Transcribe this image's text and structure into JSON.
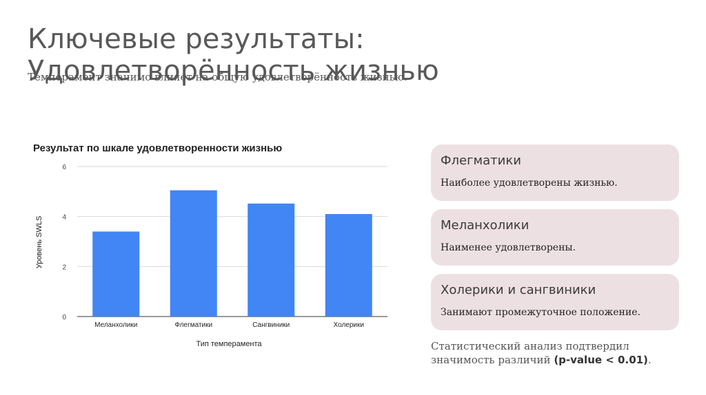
{
  "slide": {
    "title": "Ключевые результаты: Удовлетворённость жизнью",
    "subtitle": "Темперамент значимо влияет на общую удовлетворённость жизнью."
  },
  "chart_data": {
    "type": "bar",
    "title": "Результат по шкале удовлетворенности жизнью",
    "xlabel": "Тип темперамента",
    "ylabel": "Уровень SWLS",
    "categories": [
      "Меланхолики",
      "Флегматики",
      "Сангвиники",
      "Холерики"
    ],
    "values": [
      3.4,
      5.05,
      4.52,
      4.1
    ],
    "ylim": [
      0,
      6
    ],
    "yticks": [
      "0",
      "2",
      "4",
      "6"
    ],
    "grid": true,
    "legend": "none",
    "bar_color": "#4285f4"
  },
  "cards": [
    {
      "title": "Флегматики",
      "text": "Наиболее удовлетворены жизнью."
    },
    {
      "title": "Меланхолики",
      "text": "Наименее удовлетворены."
    },
    {
      "title": "Холерики и сангвиники",
      "text": "Занимают промежуточное положение."
    }
  ],
  "note": {
    "text": "Статистический анализ подтвердил значимость различий",
    "emphasis": "(p-value < 0.01)",
    "end": "."
  },
  "colors": {
    "card_bg": "#ede0e3",
    "title_text": "#595959"
  }
}
